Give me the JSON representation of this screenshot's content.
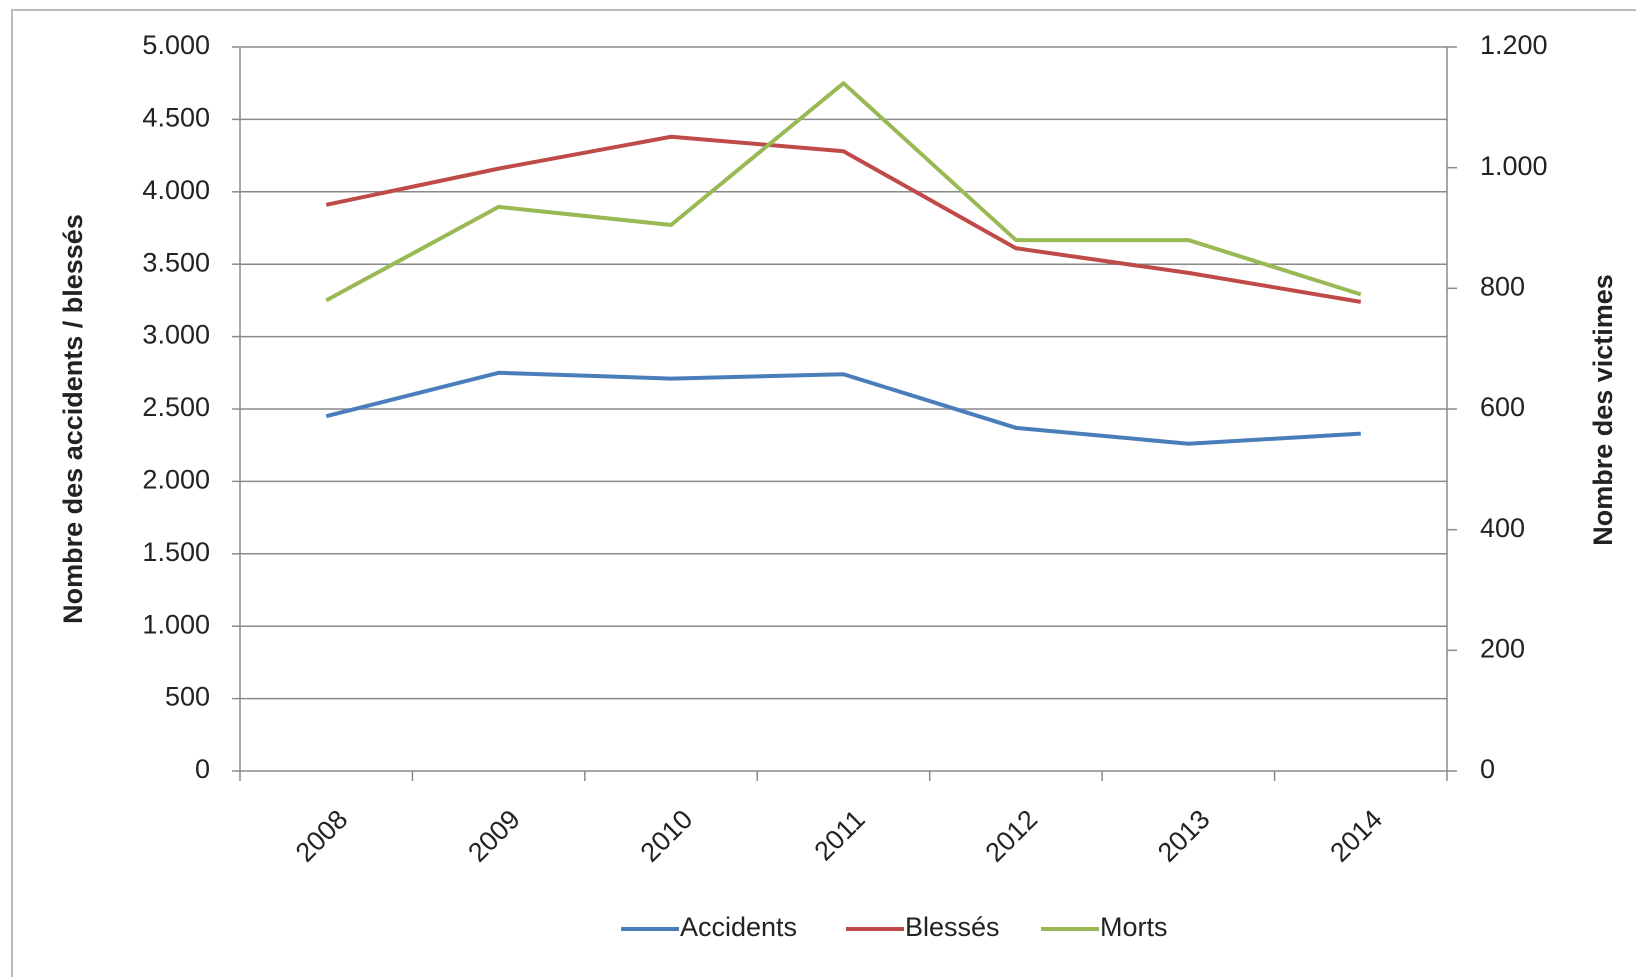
{
  "chart_data": {
    "type": "line",
    "categories": [
      "2008",
      "2009",
      "2010",
      "2011",
      "2012",
      "2013",
      "2014"
    ],
    "y_label": "Nombre des accidents / blessés",
    "y2_label": "Nombre des  victimes",
    "series": [
      {
        "name": "Accidents",
        "color": "#4a7ebb",
        "values": [
          2450,
          2750,
          2710,
          2740,
          2370,
          2260,
          2330
        ]
      },
      {
        "name": "Blessés",
        "color": "#be4b48",
        "values": [
          3910,
          4160,
          4380,
          4280,
          3610,
          3440,
          3240
        ]
      },
      {
        "name": "Morts",
        "color": "#98b954",
        "axis": "y2",
        "values": [
          780,
          935,
          905,
          1140,
          880,
          880,
          790
        ]
      }
    ],
    "ylim": [
      0,
      5000
    ],
    "yticks": [
      0,
      500,
      {
        "value": 1000,
        "label": "1.000"
      },
      {
        "value": 1500,
        "label": "1.500"
      },
      {
        "value": 2000,
        "label": "2.000"
      },
      {
        "value": 2500,
        "label": "2.500"
      },
      {
        "value": 3000,
        "label": "3.000"
      },
      {
        "value": 3500,
        "label": "3.500"
      },
      {
        "value": 4000,
        "label": "4.000"
      },
      {
        "value": 4500,
        "label": "4.500"
      },
      {
        "value": 5000,
        "label": "5.000"
      }
    ],
    "y2lim": [
      0,
      1200
    ],
    "y2ticks": [
      0,
      200,
      400,
      600,
      800,
      {
        "value": 1000,
        "label": "1.000"
      },
      {
        "value": 1200,
        "label": "1.200"
      }
    ],
    "grid": true,
    "legend": "bottom"
  }
}
